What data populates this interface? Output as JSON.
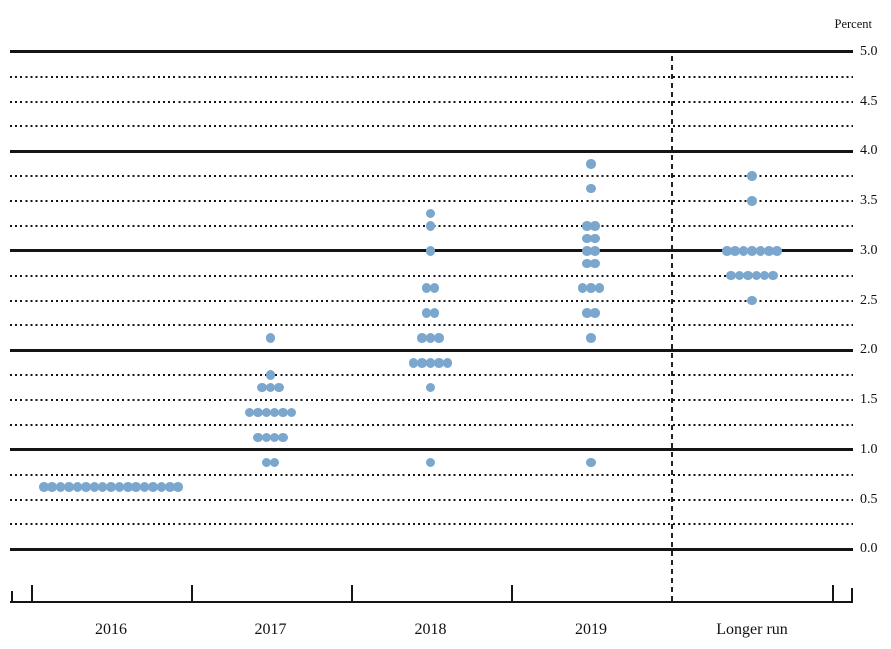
{
  "chart_data": {
    "type": "scatter",
    "subtype": "fomc-dot-plot",
    "title": "",
    "unit_label": "Percent",
    "ylim": [
      0.0,
      5.0
    ],
    "gridline_step": 0.25,
    "gridline_style": "solid at whole percents, dotted at quarter percents",
    "legend_position": "none",
    "ytick_labels": [
      "5.0",
      "4.5",
      "4.0",
      "3.5",
      "3.0",
      "2.5",
      "2.0",
      "1.5",
      "1.0",
      "0.5",
      "0.0"
    ],
    "ytick_values": [
      5.0,
      4.5,
      4.0,
      3.5,
      3.0,
      2.5,
      2.0,
      1.5,
      1.0,
      0.5,
      0.0
    ],
    "categories": [
      "2016",
      "2017",
      "2018",
      "2019",
      "Longer run"
    ],
    "dashed_divider_before_category": "Longer run",
    "dot_color": "#7BA6CD",
    "series": [
      {
        "category": "2016",
        "dots": [
          {
            "rate": 0.625,
            "count": 17
          }
        ]
      },
      {
        "category": "2017",
        "dots": [
          {
            "rate": 2.125,
            "count": 1
          },
          {
            "rate": 1.75,
            "count": 1
          },
          {
            "rate": 1.625,
            "count": 3
          },
          {
            "rate": 1.375,
            "count": 6
          },
          {
            "rate": 1.125,
            "count": 4
          },
          {
            "rate": 0.875,
            "count": 2
          }
        ]
      },
      {
        "category": "2018",
        "dots": [
          {
            "rate": 3.375,
            "count": 1
          },
          {
            "rate": 3.25,
            "count": 1
          },
          {
            "rate": 3.0,
            "count": 1
          },
          {
            "rate": 2.625,
            "count": 2
          },
          {
            "rate": 2.375,
            "count": 2
          },
          {
            "rate": 2.125,
            "count": 3
          },
          {
            "rate": 1.875,
            "count": 5
          },
          {
            "rate": 1.625,
            "count": 1
          },
          {
            "rate": 0.875,
            "count": 1
          }
        ]
      },
      {
        "category": "2019",
        "dots": [
          {
            "rate": 3.875,
            "count": 1
          },
          {
            "rate": 3.625,
            "count": 1
          },
          {
            "rate": 3.25,
            "count": 2
          },
          {
            "rate": 3.125,
            "count": 2
          },
          {
            "rate": 3.0,
            "count": 2
          },
          {
            "rate": 2.875,
            "count": 2
          },
          {
            "rate": 2.625,
            "count": 3
          },
          {
            "rate": 2.375,
            "count": 2
          },
          {
            "rate": 2.125,
            "count": 1
          },
          {
            "rate": 0.875,
            "count": 1
          }
        ]
      },
      {
        "category": "Longer run",
        "dots": [
          {
            "rate": 3.75,
            "count": 1
          },
          {
            "rate": 3.5,
            "count": 1
          },
          {
            "rate": 3.0,
            "count": 7
          },
          {
            "rate": 2.75,
            "count": 6
          },
          {
            "rate": 2.5,
            "count": 1
          }
        ]
      }
    ]
  }
}
